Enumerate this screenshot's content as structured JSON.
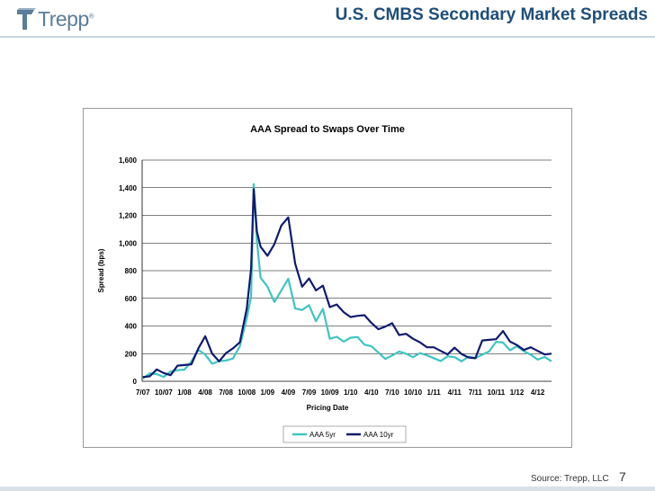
{
  "header": {
    "logo_text": "Trepp",
    "logo_reg": "®",
    "title": "U.S. CMBS Secondary Market Spreads"
  },
  "footer": {
    "source": "Source: Trepp, LLC",
    "page_number": "7"
  },
  "colors": {
    "title": "#1f4e79",
    "series_5yr": "#3ec5c2",
    "series_10yr": "#0f1b6e",
    "logo": "#5a7d99"
  },
  "chart_data": {
    "type": "line",
    "title": "AAA Spread to Swaps Over Time",
    "xlabel": "Pricing Date",
    "ylabel": "Spread (bps)",
    "ylim": [
      0,
      1600
    ],
    "yticks": [
      0,
      200,
      400,
      600,
      800,
      1000,
      1200,
      1400,
      1600
    ],
    "ytick_labels": [
      "0",
      "200",
      "400",
      "600",
      "800",
      "1,000",
      "1,200",
      "1,400",
      "1,600"
    ],
    "xlim": [
      "2007-07",
      "2012-06"
    ],
    "xticks": [
      "2007-07",
      "2007-10",
      "2008-01",
      "2008-04",
      "2008-07",
      "2008-10",
      "2009-01",
      "2009-04",
      "2009-07",
      "2009-10",
      "2010-01",
      "2010-04",
      "2010-07",
      "2010-10",
      "2011-01",
      "2011-04",
      "2011-07",
      "2011-10",
      "2012-01",
      "2012-04"
    ],
    "xtick_labels": [
      "7/07",
      "10/07",
      "1/08",
      "4/08",
      "7/08",
      "10/08",
      "1/09",
      "4/09",
      "7/09",
      "10/09",
      "1/10",
      "4/10",
      "7/10",
      "10/10",
      "1/11",
      "4/11",
      "7/11",
      "10/11",
      "1/12",
      "4/12"
    ],
    "grid": "horizontal",
    "legend": "bottom",
    "series": [
      {
        "name": "AAA 5yr",
        "color": "#3ec5c2",
        "x": [
          "2007-07",
          "2007-08",
          "2007-09",
          "2007-10",
          "2007-11",
          "2007-12",
          "2008-01",
          "2008-02",
          "2008-03",
          "2008-04",
          "2008-05",
          "2008-06",
          "2008-07",
          "2008-08",
          "2008-09",
          "2008-10",
          "2008-10-20",
          "2008-11",
          "2008-11-15",
          "2008-12",
          "2009-01",
          "2009-02",
          "2009-03",
          "2009-04",
          "2009-05",
          "2009-06",
          "2009-07",
          "2009-08",
          "2009-09",
          "2009-10",
          "2009-11",
          "2009-12",
          "2010-01",
          "2010-02",
          "2010-03",
          "2010-04",
          "2010-05",
          "2010-06",
          "2010-07",
          "2010-08",
          "2010-09",
          "2010-10",
          "2010-11",
          "2010-12",
          "2011-01",
          "2011-02",
          "2011-03",
          "2011-04",
          "2011-05",
          "2011-06",
          "2011-07",
          "2011-08",
          "2011-09",
          "2011-10",
          "2011-11",
          "2011-12",
          "2012-01",
          "2012-02",
          "2012-03",
          "2012-04",
          "2012-05",
          "2012-06"
        ],
        "values": [
          20,
          50,
          60,
          55,
          55,
          80,
          100,
          120,
          220,
          200,
          150,
          130,
          150,
          180,
          230,
          450,
          620,
          1450,
          1000,
          750,
          700,
          550,
          650,
          750,
          550,
          500,
          550,
          450,
          500,
          300,
          330,
          310,
          300,
          320,
          280,
          230,
          200,
          170,
          210,
          200,
          200,
          190,
          180,
          180,
          175,
          170,
          165,
          175,
          160,
          155,
          160,
          200,
          240,
          270,
          280,
          240,
          230,
          210,
          200,
          180,
          160,
          145
        ]
      },
      {
        "name": "AAA 10yr",
        "color": "#0f1b6e",
        "x": [
          "2007-07",
          "2007-08",
          "2007-09",
          "2007-10",
          "2007-11",
          "2007-12",
          "2008-01",
          "2008-02",
          "2008-03",
          "2008-04",
          "2008-05",
          "2008-06",
          "2008-07",
          "2008-08",
          "2008-09",
          "2008-10",
          "2008-10-20",
          "2008-11",
          "2008-11-15",
          "2008-12",
          "2009-01",
          "2009-02",
          "2009-03",
          "2009-04",
          "2009-05",
          "2009-06",
          "2009-07",
          "2009-08",
          "2009-09",
          "2009-10",
          "2009-11",
          "2009-12",
          "2010-01",
          "2010-02",
          "2010-03",
          "2010-04",
          "2010-05",
          "2010-06",
          "2010-07",
          "2010-08",
          "2010-09",
          "2010-10",
          "2010-11",
          "2010-12",
          "2011-01",
          "2011-02",
          "2011-03",
          "2011-04",
          "2011-05",
          "2011-06",
          "2011-07",
          "2011-08",
          "2011-09",
          "2011-10",
          "2011-11",
          "2011-12",
          "2012-01",
          "2012-02",
          "2012-03",
          "2012-04",
          "2012-05",
          "2012-06"
        ],
        "values": [
          30,
          60,
          70,
          60,
          60,
          90,
          110,
          130,
          260,
          310,
          200,
          160,
          180,
          230,
          290,
          550,
          800,
          1390,
          1100,
          950,
          900,
          1000,
          1150,
          1170,
          850,
          700,
          720,
          650,
          700,
          560,
          540,
          500,
          480,
          450,
          470,
          430,
          400,
          380,
          420,
          350,
          320,
          300,
          290,
          270,
          230,
          220,
          210,
          220,
          190,
          180,
          190,
          280,
          300,
          320,
          340,
          280,
          270,
          250,
          230,
          220,
          210,
          200
        ]
      }
    ]
  }
}
